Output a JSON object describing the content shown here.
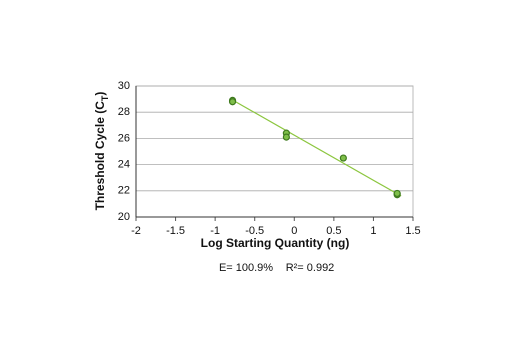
{
  "chart_data": {
    "type": "scatter",
    "x_label": "Log Starting Quantity (ng)",
    "y_label": {
      "text": "Threshold Cycle (C",
      "sub": "T",
      "end": ")"
    },
    "annotations": [
      "E= 100.9%",
      "R²= 0.992"
    ],
    "x": [
      -0.78,
      -0.78,
      -0.1,
      -0.1,
      0.62,
      1.3,
      1.3
    ],
    "values": [
      28.9,
      28.8,
      26.4,
      26.1,
      24.5,
      21.7,
      21.8
    ],
    "color": "#3f7a1f",
    "fill": "#7fbf4a",
    "trendline": {
      "x": [
        -0.8,
        1.35
      ],
      "y": [
        29.0,
        21.6
      ],
      "color": "#8cc63f"
    },
    "xlim": [
      -2,
      1.5
    ],
    "xticks": [
      -2,
      -1.5,
      -1,
      -0.5,
      0,
      0.5,
      1,
      1.5
    ],
    "ylim": [
      20,
      30
    ],
    "yticks": [
      20,
      22,
      24,
      26,
      28,
      30
    ],
    "grid": true
  }
}
